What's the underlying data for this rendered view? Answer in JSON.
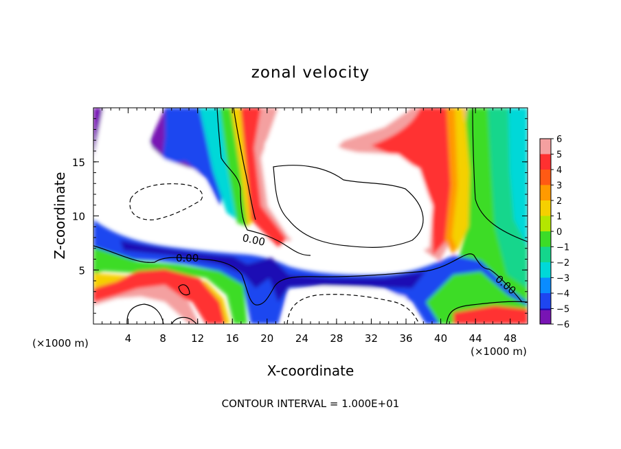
{
  "chart_data": {
    "type": "heatmap",
    "title": "zonal velocity",
    "xlabel": "X-coordinate",
    "ylabel": "Z-coordinate",
    "x_unit_left": "(×1000 m)",
    "x_unit_right": "(×1000 m)",
    "xlim": [
      0,
      50
    ],
    "ylim": [
      0,
      20
    ],
    "x_ticks": [
      4,
      8,
      12,
      16,
      20,
      24,
      28,
      32,
      36,
      40,
      44,
      48
    ],
    "y_ticks": [
      5,
      10,
      15
    ],
    "colorbar": {
      "levels": [
        6,
        5,
        4,
        3,
        2,
        1,
        0,
        -1,
        -2,
        -3,
        -4,
        -5,
        -6
      ],
      "colors": [
        "#f4a0a0",
        "#ff3030",
        "#ff5a14",
        "#ff9a00",
        "#f5d000",
        "#b4e600",
        "#3cdc28",
        "#14d68c",
        "#00d8d8",
        "#0a8cff",
        "#1e46f0",
        "#1e0ab4",
        "#7814b4"
      ]
    },
    "contour_labels": [
      "0.00",
      "0.00",
      "0.00"
    ],
    "footer": "CONTOUR INTERVAL = 1.000E+01"
  }
}
